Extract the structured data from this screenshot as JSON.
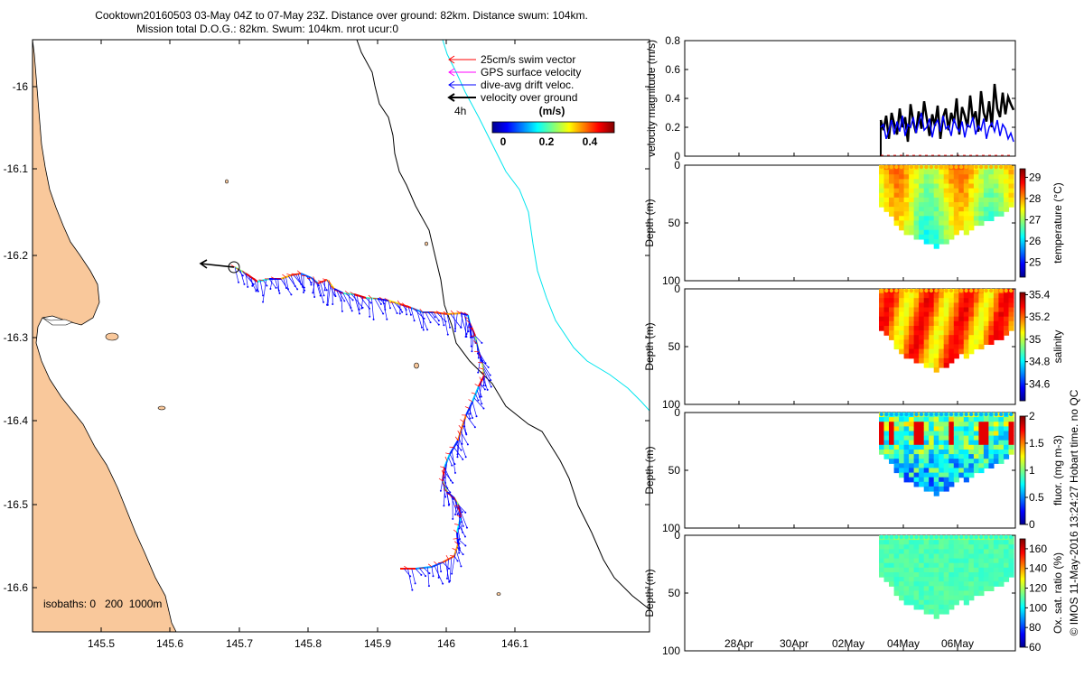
{
  "header": {
    "line1": "Cooktown20160503 03-May 04Z to 07-May 23Z. Distance over ground: 82km. Distance swum: 104km.",
    "line2": "Mission total D.O.G.: 82km. Swum: 104km. nrot ucur:0"
  },
  "map": {
    "land_color": "#f9c89b",
    "x_ticks": [
      "145.5",
      "145.6",
      "145.7",
      "145.8",
      "145.9",
      "146",
      "146.1"
    ],
    "y_ticks": [
      "-16",
      "-16.1",
      "-16.2",
      "-16.3",
      "-16.4",
      "-16.5",
      "-16.6"
    ],
    "legend": {
      "swim": "25cm/s swim vector",
      "gps": "GPS surface velocity",
      "dive": "dive-avg drift veloc.",
      "ground": "velocity over ground",
      "interval": "4h"
    },
    "colorbar": {
      "title": "(m/s)",
      "ticks": [
        "0",
        "0.2",
        "0.4"
      ]
    },
    "isobaths_label": "isobaths: 0   200  1000m"
  },
  "chart_data": [
    {
      "type": "line",
      "ylabel": "velocity magnitude (m/s)",
      "ylim": [
        0,
        0.8
      ],
      "y_ticks": [
        "0.8",
        "0.6",
        "0.4",
        "0.2",
        "0"
      ],
      "series_colors": {
        "ground": "#000000",
        "dive": "#0000ff",
        "gps": "#ff0000"
      },
      "ground_velocity": [
        0.25,
        0.18,
        0.28,
        0.12,
        0.3,
        0.22,
        0.15,
        0.33,
        0.2,
        0.27,
        0.1,
        0.36,
        0.24,
        0.16,
        0.31,
        0.19,
        0.38,
        0.26,
        0.14,
        0.29,
        0.21,
        0.35,
        0.12,
        0.27,
        0.33,
        0.18,
        0.3,
        0.23,
        0.4,
        0.15,
        0.34,
        0.28,
        0.2,
        0.42,
        0.25,
        0.31,
        0.17,
        0.45,
        0.3,
        0.24,
        0.38,
        0.2,
        0.5,
        0.33,
        0.27,
        0.44,
        0.29,
        0.41,
        0.36,
        0.32
      ],
      "dive_velocity": [
        0.2,
        0.22,
        0.12,
        0.18,
        0.25,
        0.15,
        0.24,
        0.17,
        0.28,
        0.14,
        0.22,
        0.2,
        0.27,
        0.16,
        0.23,
        0.3,
        0.18,
        0.2,
        0.26,
        0.13,
        0.22,
        0.25,
        0.17,
        0.28,
        0.19,
        0.21,
        0.14,
        0.26,
        0.2,
        0.17,
        0.24,
        0.13,
        0.22,
        0.2,
        0.27,
        0.15,
        0.21,
        0.18,
        0.26,
        0.12,
        0.2,
        0.23,
        0.17,
        0.25,
        0.14,
        0.22,
        0.19,
        0.12,
        0.16,
        0.1
      ]
    },
    {
      "type": "heatmap",
      "ylabel": "Depth (m)",
      "ylim": [
        0,
        100
      ],
      "y_ticks": [
        "0",
        "50",
        "100"
      ],
      "colorbar_label": "temperature (°C)",
      "colorbar_ticks": [
        "29",
        "28",
        "27",
        "26",
        "25"
      ],
      "range": [
        24.3,
        29.4
      ]
    },
    {
      "type": "heatmap",
      "ylabel": "Depth (m)",
      "ylim": [
        0,
        100
      ],
      "y_ticks": [
        "0",
        "50",
        "100"
      ],
      "colorbar_label": "salinity",
      "colorbar_ticks": [
        "35.4",
        "35.2",
        "35",
        "34.8",
        "34.6"
      ],
      "range": [
        34.45,
        35.42
      ]
    },
    {
      "type": "heatmap",
      "ylabel": "Depth (m)",
      "ylim": [
        0,
        100
      ],
      "y_ticks": [
        "0",
        "50",
        "100"
      ],
      "colorbar_label": "fluor. (mg m-3)",
      "colorbar_ticks": [
        "2",
        "1.5",
        "1",
        "0.5",
        "0"
      ],
      "range": [
        0,
        2
      ]
    },
    {
      "type": "heatmap",
      "ylabel": "Depth (m)",
      "ylim": [
        0,
        100
      ],
      "y_ticks": [
        "0",
        "50",
        "100"
      ],
      "colorbar_label": "Ox. sat. ratio (%)",
      "colorbar_ticks": [
        "160",
        "140",
        "120",
        "100",
        "80",
        "60"
      ],
      "range": [
        60,
        170
      ]
    }
  ],
  "time_axis": {
    "ticks": [
      "28Apr",
      "30Apr",
      "02May",
      "04May",
      "06May"
    ]
  },
  "footer": "© IMOS 11-May-2016 13:24:27 Hobart time. no QC"
}
